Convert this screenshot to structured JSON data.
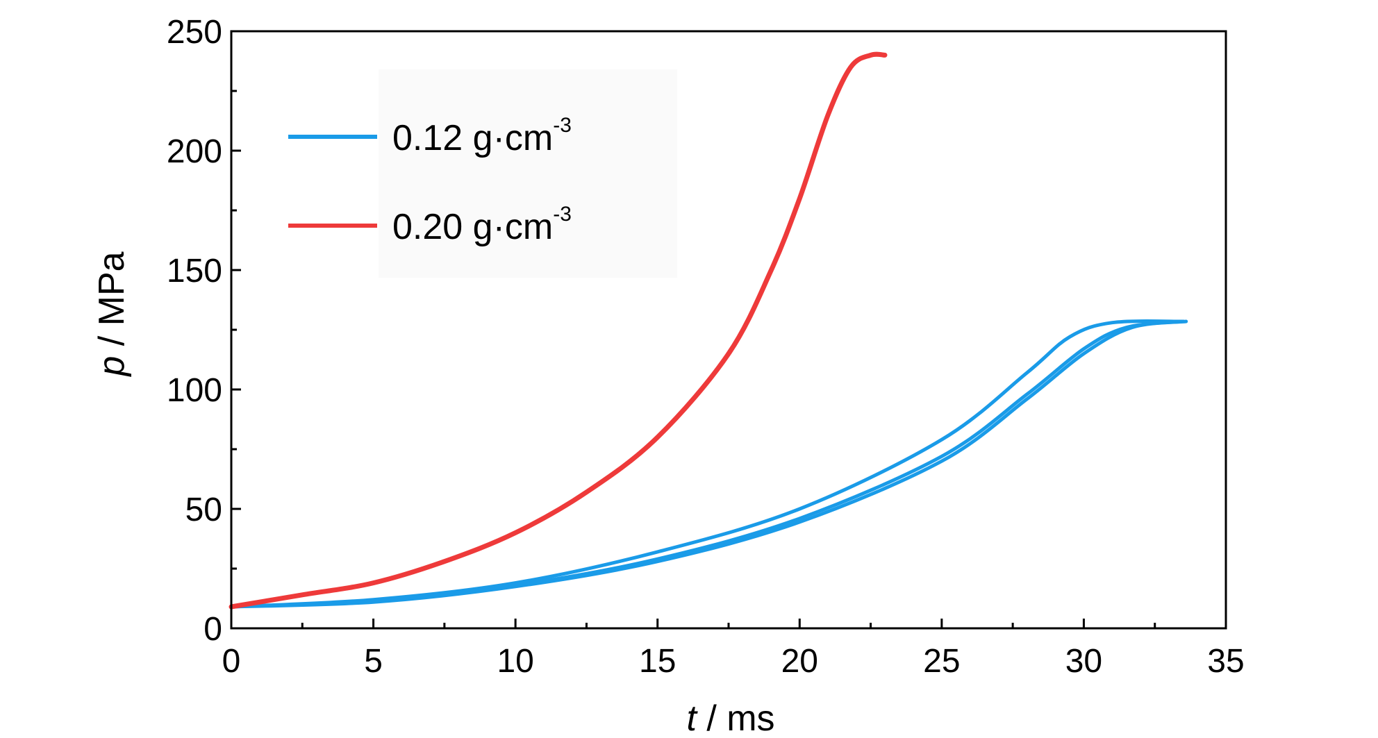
{
  "chart_data": {
    "type": "line",
    "xlabel_italic": "t",
    "xlabel_unit": " / ms",
    "ylabel_italic": "p",
    "ylabel_unit": " / MPa",
    "xlim": [
      0,
      35
    ],
    "ylim": [
      0,
      250
    ],
    "x_ticks": [
      0,
      5,
      10,
      15,
      20,
      25,
      30,
      35
    ],
    "y_ticks": [
      0,
      50,
      100,
      150,
      200,
      250
    ],
    "grid": false,
    "legend_position": "upper-left",
    "series": [
      {
        "name": "0.12 g·cm",
        "name_superscript": "-3",
        "color": "#1a9be8",
        "curves": [
          [
            [
              0,
              9
            ],
            [
              5,
              12
            ],
            [
              10,
              19
            ],
            [
              15,
              32
            ],
            [
              20,
              50
            ],
            [
              25,
              79
            ],
            [
              28,
              107
            ],
            [
              29.5,
              122
            ],
            [
              31,
              128
            ],
            [
              33.5,
              128.5
            ]
          ],
          [
            [
              0,
              9
            ],
            [
              5,
              11.5
            ],
            [
              10,
              18
            ],
            [
              15,
              29
            ],
            [
              20,
              46
            ],
            [
              25,
              72
            ],
            [
              28,
              98
            ],
            [
              30,
              117
            ],
            [
              31.5,
              126
            ],
            [
              33.5,
              128.5
            ]
          ],
          [
            [
              0,
              9
            ],
            [
              5,
              11
            ],
            [
              10,
              17.5
            ],
            [
              15,
              28
            ],
            [
              20,
              44.5
            ],
            [
              25,
              70
            ],
            [
              28,
              96
            ],
            [
              30,
              115
            ],
            [
              31.7,
              126
            ],
            [
              33.6,
              128.5
            ]
          ]
        ]
      },
      {
        "name": "0.20 g·cm",
        "name_superscript": "-3",
        "color": "#ee3a3a",
        "curves": [
          [
            [
              0,
              9
            ],
            [
              2.5,
              14
            ],
            [
              5,
              19
            ],
            [
              7.5,
              28
            ],
            [
              10,
              40
            ],
            [
              12.5,
              57
            ],
            [
              15,
              80
            ],
            [
              17.5,
              115
            ],
            [
              19,
              150
            ],
            [
              20,
              180
            ],
            [
              21,
              215
            ],
            [
              21.8,
              235
            ],
            [
              22.5,
              240
            ],
            [
              23,
              240
            ]
          ]
        ]
      }
    ]
  }
}
